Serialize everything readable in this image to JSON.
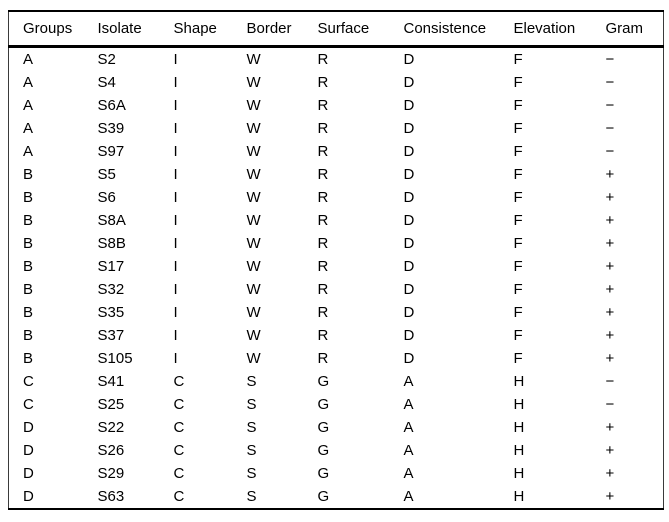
{
  "chart_data": {
    "type": "table",
    "title": "",
    "columns": [
      "Groups",
      "Isolate",
      "Shape",
      "Border",
      "Surface",
      "Consistence",
      "Elevation",
      "Gram"
    ],
    "rows": [
      [
        "A",
        "S2",
        "I",
        "W",
        "R",
        "D",
        "F",
        "−"
      ],
      [
        "A",
        "S4",
        "I",
        "W",
        "R",
        "D",
        "F",
        "−"
      ],
      [
        "A",
        "S6A",
        "I",
        "W",
        "R",
        "D",
        "F",
        "−"
      ],
      [
        "A",
        "S39",
        "I",
        "W",
        "R",
        "D",
        "F",
        "−"
      ],
      [
        "A",
        "S97",
        "I",
        "W",
        "R",
        "D",
        "F",
        "−"
      ],
      [
        "B",
        "S5",
        "I",
        "W",
        "R",
        "D",
        "F",
        "+"
      ],
      [
        "B",
        "S6",
        "I",
        "W",
        "R",
        "D",
        "F",
        "+"
      ],
      [
        "B",
        "S8A",
        "I",
        "W",
        "R",
        "D",
        "F",
        "+"
      ],
      [
        "B",
        "S8B",
        "I",
        "W",
        "R",
        "D",
        "F",
        "+"
      ],
      [
        "B",
        "S17",
        "I",
        "W",
        "R",
        "D",
        "F",
        "+"
      ],
      [
        "B",
        "S32",
        "I",
        "W",
        "R",
        "D",
        "F",
        "+"
      ],
      [
        "B",
        "S35",
        "I",
        "W",
        "R",
        "D",
        "F",
        "+"
      ],
      [
        "B",
        "S37",
        "I",
        "W",
        "R",
        "D",
        "F",
        "+"
      ],
      [
        "B",
        "S105",
        "I",
        "W",
        "R",
        "D",
        "F",
        "+"
      ],
      [
        "C",
        "S41",
        "C",
        "S",
        "G",
        "A",
        "H",
        "−"
      ],
      [
        "C",
        "S25",
        "C",
        "S",
        "G",
        "A",
        "H",
        "−"
      ],
      [
        "D",
        "S22",
        "C",
        "S",
        "G",
        "A",
        "H",
        "+"
      ],
      [
        "D",
        "S26",
        "C",
        "S",
        "G",
        "A",
        "H",
        "+"
      ],
      [
        "D",
        "S29",
        "C",
        "S",
        "G",
        "A",
        "H",
        "+"
      ],
      [
        "D",
        "S63",
        "C",
        "S",
        "G",
        "A",
        "H",
        "+"
      ]
    ],
    "text_color": "#000000",
    "background_color": "#ffffff",
    "rule_color": "#000000"
  }
}
